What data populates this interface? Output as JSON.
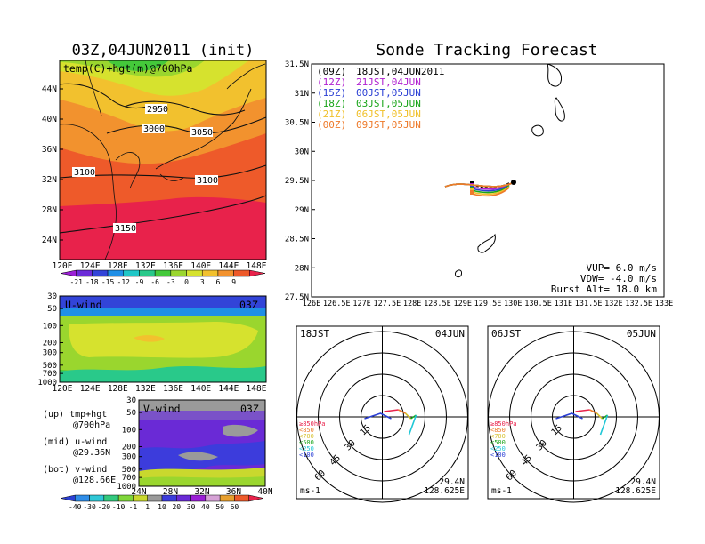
{
  "map_panel": {
    "title": "03Z,04JUN2011 (init)",
    "label": "temp(C)+hgt(m)@700hPa",
    "lat_ticks": [
      "44N",
      "40N",
      "36N",
      "32N",
      "28N",
      "24N"
    ],
    "lon_ticks": [
      "120E",
      "124E",
      "128E",
      "132E",
      "136E",
      "140E",
      "144E",
      "148E"
    ],
    "contours": [
      "2950",
      "3000",
      "3050",
      "3100",
      "3100",
      "3150"
    ]
  },
  "temp_colorbar": {
    "labels": [
      "-21",
      "-18",
      "-15",
      "-12",
      "-9",
      "-6",
      "-3",
      "0",
      "3",
      "6",
      "9"
    ],
    "colors": [
      "#9b1fd6",
      "#6b2bd8",
      "#3244d8",
      "#1f8fe6",
      "#1fc7c7",
      "#29c98a",
      "#44c93a",
      "#9ad62e",
      "#d6e22e",
      "#f2c12e",
      "#f2922e",
      "#ee5a2a",
      "#e8224b"
    ]
  },
  "u_wind_panel": {
    "label": "U-wind",
    "time": "03Z",
    "y_ticks": [
      "30",
      "50",
      "100",
      "200",
      "300",
      "500",
      "700",
      "1000"
    ],
    "x_ticks": [
      "120E",
      "124E",
      "128E",
      "132E",
      "136E",
      "140E",
      "144E",
      "148E"
    ]
  },
  "v_wind_panel": {
    "label": "V-wind",
    "time": "03Z",
    "y_ticks": [
      "30",
      "50",
      "100",
      "200",
      "300",
      "500",
      "700",
      "1000"
    ],
    "x_ticks": [
      "24N",
      "28N",
      "32N",
      "36N",
      "40N"
    ]
  },
  "wind_colorbar": {
    "labels": [
      "-40",
      "-30",
      "-20",
      "-10",
      "-1",
      "1",
      "10",
      "20",
      "30",
      "40",
      "50",
      "60"
    ],
    "colors": [
      "#2b3fd4",
      "#2f8de8",
      "#2fc7d6",
      "#33c97e",
      "#7fd63a",
      "#c9d82e",
      "#9a9a9a",
      "#3c3cdc",
      "#6a2ad6",
      "#9b1fd6",
      "#d6a2d6",
      "#e8a02e",
      "#ee5a2a",
      "#e8224b"
    ]
  },
  "legend_notes": {
    "top": "(up) tmp+hgt",
    "top2": "@700hPa",
    "mid": "(mid) u-wind",
    "mid2": "@29.36N",
    "bot": "(bot) v-wind",
    "bot2": "@128.66E"
  },
  "track_panel": {
    "title": "Sonde Tracking Forecast",
    "lat_ticks": [
      "31.5N",
      "31N",
      "30.5N",
      "30N",
      "29.5N",
      "29N",
      "28.5N",
      "28N",
      "27.5N"
    ],
    "lon_ticks": [
      "126E",
      "126.5E",
      "127E",
      "127.5E",
      "128E",
      "128.5E",
      "129E",
      "129.5E",
      "130E",
      "130.5E",
      "131E",
      "131.5E",
      "132E",
      "132.5E",
      "133E"
    ],
    "launch_times": [
      {
        "utc": "(09Z)",
        "jst": "18JST,04JUN2011",
        "color": "#000000"
      },
      {
        "utc": "(12Z)",
        "jst": "21JST,04JUN",
        "color": "#b01fd0"
      },
      {
        "utc": "(15Z)",
        "jst": "00JST,05JUN",
        "color": "#2b3fd4"
      },
      {
        "utc": "(18Z)",
        "jst": "03JST,05JUN",
        "color": "#1aa51a"
      },
      {
        "utc": "(21Z)",
        "jst": "06JST,05JUN",
        "color": "#f0c02a"
      },
      {
        "utc": "(00Z)",
        "jst": "09JST,05JUN",
        "color": "#ee7a2a"
      }
    ],
    "params": [
      "VUP= 6.0 m/s",
      "VDW= -4.0 m/s",
      "Burst Alt= 18.0 km"
    ]
  },
  "hodo_left": {
    "time": "18JST",
    "date": "04JUN",
    "lat": "29.4N",
    "lon": "128.625E",
    "unit": "ms-1",
    "rings": [
      "15",
      "30",
      "45",
      "60"
    ],
    "levels": [
      {
        "label": "≥850hPa",
        "color": "#e8224b"
      },
      {
        "label": "<850",
        "color": "#ee7a2a"
      },
      {
        "label": "<700",
        "color": "#d6c02e"
      },
      {
        "label": "<500",
        "color": "#1aa51a"
      },
      {
        "label": "<250",
        "color": "#1fc7d6"
      },
      {
        "label": "<100",
        "color": "#2b3fd4"
      }
    ]
  },
  "hodo_right": {
    "time": "06JST",
    "date": "05JUN",
    "lat": "29.4N",
    "lon": "128.625E",
    "unit": "ms-1",
    "rings": [
      "15",
      "30",
      "45",
      "60"
    ],
    "levels": [
      {
        "label": "≥850hPa",
        "color": "#e8224b"
      },
      {
        "label": "<850",
        "color": "#ee7a2a"
      },
      {
        "label": "<700",
        "color": "#d6c02e"
      },
      {
        "label": "<500",
        "color": "#1aa51a"
      },
      {
        "label": "<250",
        "color": "#1fc7d6"
      },
      {
        "label": "<100",
        "color": "#2b3fd4"
      }
    ]
  }
}
